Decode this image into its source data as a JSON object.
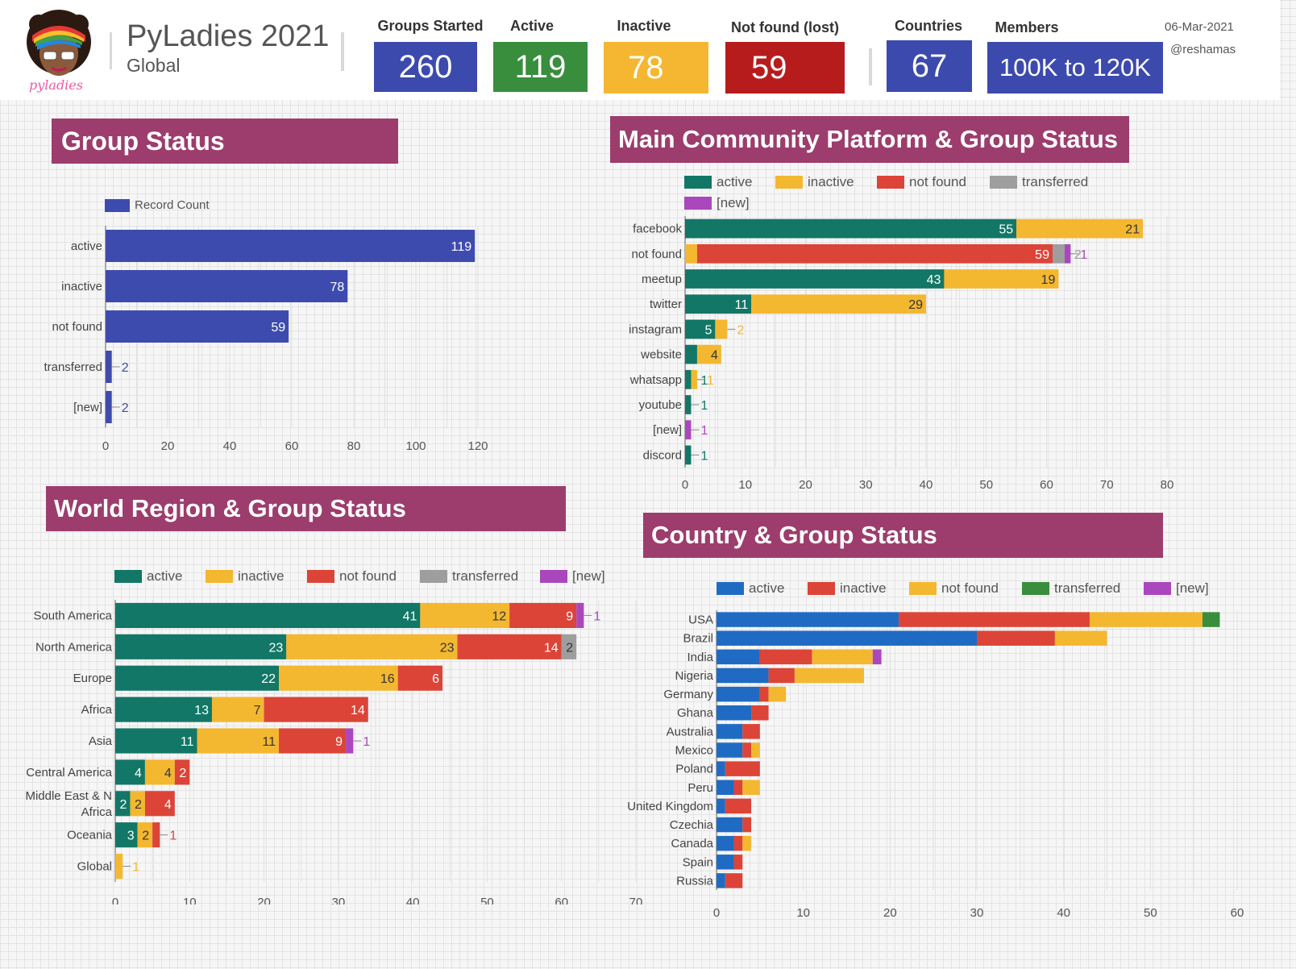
{
  "header": {
    "title": "PyLadies 2021",
    "subtitle": "Global",
    "logo_text": "pyladies",
    "date": "06-Mar-2021",
    "handle": "@reshamas",
    "kpis": [
      {
        "label": "Groups Started",
        "value": "260",
        "color": "#3c4aad"
      },
      {
        "label": "Active",
        "value": "119",
        "color": "#388e3c"
      },
      {
        "label": "Inactive",
        "value": "78",
        "color": "#f5b731"
      },
      {
        "label": "Not found (lost)",
        "value": "59",
        "color": "#b71c1c"
      },
      {
        "label": "Countries",
        "value": "67",
        "color": "#3c4aad"
      },
      {
        "label": "Members",
        "value": "100K to 120K",
        "color": "#3c4aad"
      }
    ]
  },
  "banners": {
    "group_status": "Group Status",
    "platform": "Main Community Platform & Group Status",
    "region": "World Region & Group Status",
    "country": "Country & Group Status"
  },
  "colors": {
    "banner": "#9c3d6d",
    "teal": "#127766",
    "yellow": "#f4b730",
    "red": "#dc4437",
    "gray": "#9e9e9e",
    "purple": "#ab47bc",
    "indigo": "#3e4bae",
    "blue": "#1f6bc4",
    "green": "#388e3c"
  },
  "chart_data": [
    {
      "id": "group-status",
      "type": "bar",
      "orientation": "horizontal",
      "categories": [
        "active",
        "inactive",
        "not found",
        "transferred",
        "[new]"
      ],
      "series": [
        {
          "name": "Record Count",
          "values": [
            119,
            78,
            59,
            2,
            2
          ],
          "color": "#3e4bae"
        }
      ],
      "xlim": [
        0,
        120
      ],
      "xticks": [
        0,
        20,
        40,
        60,
        80,
        100,
        120
      ],
      "legend": "top-left",
      "grid": true
    },
    {
      "id": "platform",
      "type": "bar",
      "orientation": "horizontal",
      "stacked": true,
      "categories": [
        "facebook",
        "not found",
        "meetup",
        "twitter",
        "instagram",
        "website",
        "whatsapp",
        "youtube",
        "[new]",
        "discord"
      ],
      "series": [
        {
          "name": "active",
          "color": "#127766",
          "values": [
            55,
            0,
            43,
            11,
            5,
            2,
            1,
            1,
            0,
            1
          ]
        },
        {
          "name": "inactive",
          "color": "#f4b730",
          "values": [
            21,
            2,
            19,
            29,
            2,
            4,
            1,
            0,
            0,
            0
          ]
        },
        {
          "name": "not found",
          "color": "#dc4437",
          "values": [
            0,
            59,
            0,
            0,
            0,
            0,
            0,
            0,
            0,
            0
          ]
        },
        {
          "name": "transferred",
          "color": "#9e9e9e",
          "values": [
            0,
            2,
            0,
            0,
            0,
            0,
            0,
            0,
            0,
            0
          ]
        },
        {
          "name": "[new]",
          "color": "#ab47bc",
          "values": [
            0,
            1,
            0,
            0,
            0,
            0,
            0,
            0,
            1,
            0
          ]
        }
      ],
      "xlim": [
        0,
        80
      ],
      "xticks": [
        0,
        10,
        20,
        30,
        40,
        50,
        60,
        70,
        80
      ],
      "legend": "top",
      "grid": true
    },
    {
      "id": "region",
      "type": "bar",
      "orientation": "horizontal",
      "stacked": true,
      "categories": [
        "South America",
        "North America",
        "Europe",
        "Africa",
        "Asia",
        "Central America",
        "Middle East & N Africa",
        "Oceania",
        "Global"
      ],
      "series": [
        {
          "name": "active",
          "color": "#127766",
          "values": [
            41,
            23,
            22,
            13,
            11,
            4,
            2,
            3,
            0
          ]
        },
        {
          "name": "inactive",
          "color": "#f4b730",
          "values": [
            12,
            23,
            16,
            7,
            11,
            4,
            2,
            2,
            1
          ]
        },
        {
          "name": "not found",
          "color": "#dc4437",
          "values": [
            9,
            14,
            6,
            14,
            9,
            2,
            4,
            1,
            0
          ]
        },
        {
          "name": "transferred",
          "color": "#9e9e9e",
          "values": [
            0,
            2,
            0,
            0,
            0,
            0,
            0,
            0,
            0
          ]
        },
        {
          "name": "[new]",
          "color": "#ab47bc",
          "values": [
            1,
            0,
            0,
            0,
            1,
            0,
            0,
            0,
            0
          ]
        }
      ],
      "xlim": [
        0,
        70
      ],
      "xticks": [
        0,
        10,
        20,
        30,
        40,
        50,
        60,
        70
      ],
      "legend": "top",
      "grid": true
    },
    {
      "id": "country",
      "type": "bar",
      "orientation": "horizontal",
      "stacked": true,
      "categories": [
        "USA",
        "Brazil",
        "India",
        "Nigeria",
        "Germany",
        "Ghana",
        "Australia",
        "Mexico",
        "Poland",
        "Peru",
        "United Kingdom",
        "Czechia",
        "Canada",
        "Spain",
        "Russia"
      ],
      "series": [
        {
          "name": "active",
          "color": "#1f6bc4",
          "values": [
            21,
            30,
            5,
            6,
            5,
            4,
            3,
            3,
            1,
            2,
            1,
            3,
            2,
            2,
            1
          ]
        },
        {
          "name": "inactive",
          "color": "#dc4437",
          "values": [
            22,
            9,
            6,
            3,
            1,
            2,
            2,
            1,
            4,
            1,
            3,
            1,
            1,
            1,
            2
          ]
        },
        {
          "name": "not found",
          "color": "#f4b730",
          "values": [
            13,
            6,
            7,
            8,
            2,
            0,
            0,
            1,
            0,
            2,
            0,
            0,
            1,
            0,
            0
          ]
        },
        {
          "name": "transferred",
          "color": "#388e3c",
          "values": [
            2,
            0,
            0,
            0,
            0,
            0,
            0,
            0,
            0,
            0,
            0,
            0,
            0,
            0,
            0
          ]
        },
        {
          "name": "[new]",
          "color": "#ab47bc",
          "values": [
            0,
            0,
            1,
            0,
            0,
            0,
            0,
            0,
            0,
            0,
            0,
            0,
            0,
            0,
            0
          ]
        }
      ],
      "xlim": [
        0,
        60
      ],
      "xticks": [
        0,
        10,
        20,
        30,
        40,
        50,
        60
      ],
      "legend": "top",
      "grid": true,
      "data_labels": false
    }
  ]
}
